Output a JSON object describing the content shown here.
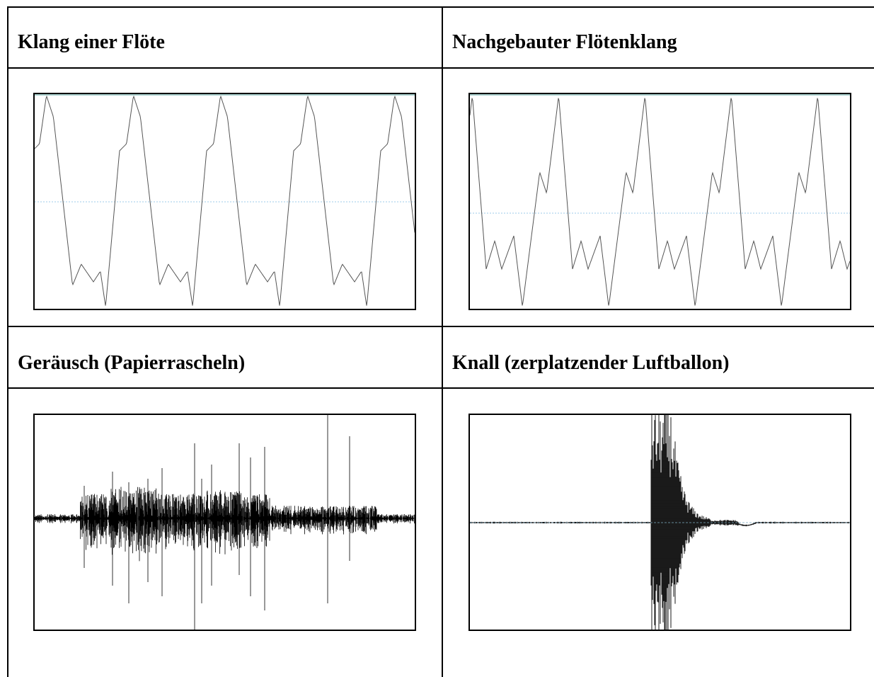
{
  "table": {
    "cells": [
      {
        "title": "Klang einer Flöte",
        "waveform": "flute-real"
      },
      {
        "title": "Nachgebauter Flötenklang",
        "waveform": "flute-synth"
      },
      {
        "title": "Geräusch (Papierrascheln)",
        "waveform": "noise"
      },
      {
        "title": "Knall (zerplatzender Luftballon)",
        "waveform": "bang"
      }
    ]
  },
  "colors": {
    "line": "#000000",
    "baseline": "#9ecbe8",
    "wave_thin": "#555555"
  }
}
